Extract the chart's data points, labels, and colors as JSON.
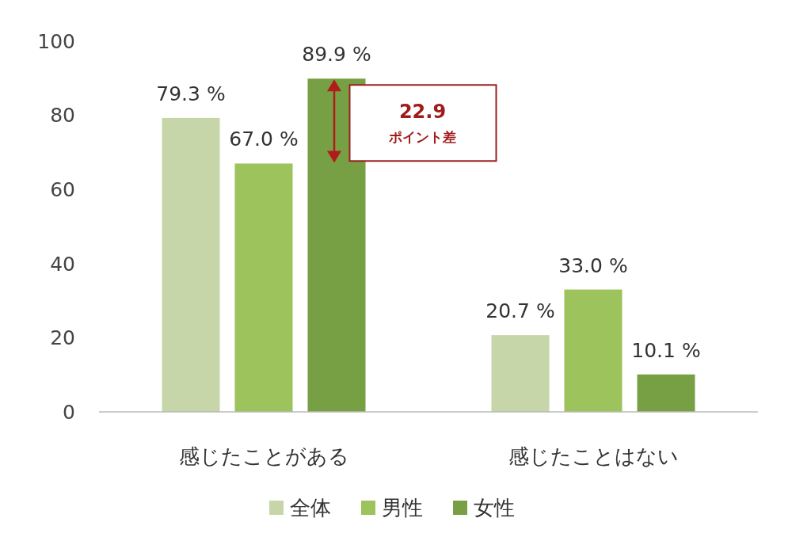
{
  "chart_data": {
    "type": "bar",
    "categories": [
      "感じたことがある",
      "感じたことはない"
    ],
    "series": [
      {
        "name": "全体",
        "color": "#c6d6a9",
        "values": [
          79.3,
          20.7
        ],
        "value_labels": [
          "79.3 %",
          "20.7 %"
        ]
      },
      {
        "name": "男性",
        "color": "#9cc35c",
        "values": [
          67.0,
          33.0
        ],
        "value_labels": [
          "67.0 %",
          "33.0 %"
        ]
      },
      {
        "name": "女性",
        "color": "#77a044",
        "values": [
          89.9,
          10.1
        ],
        "value_labels": [
          "89.9 %",
          "10.1 %"
        ]
      }
    ],
    "ylim": [
      0,
      100
    ],
    "yticks": [
      0,
      20,
      40,
      60,
      80,
      100
    ],
    "grid": false,
    "legend": "bottom",
    "annotations": [
      "22.9\nポイント差"
    ]
  }
}
